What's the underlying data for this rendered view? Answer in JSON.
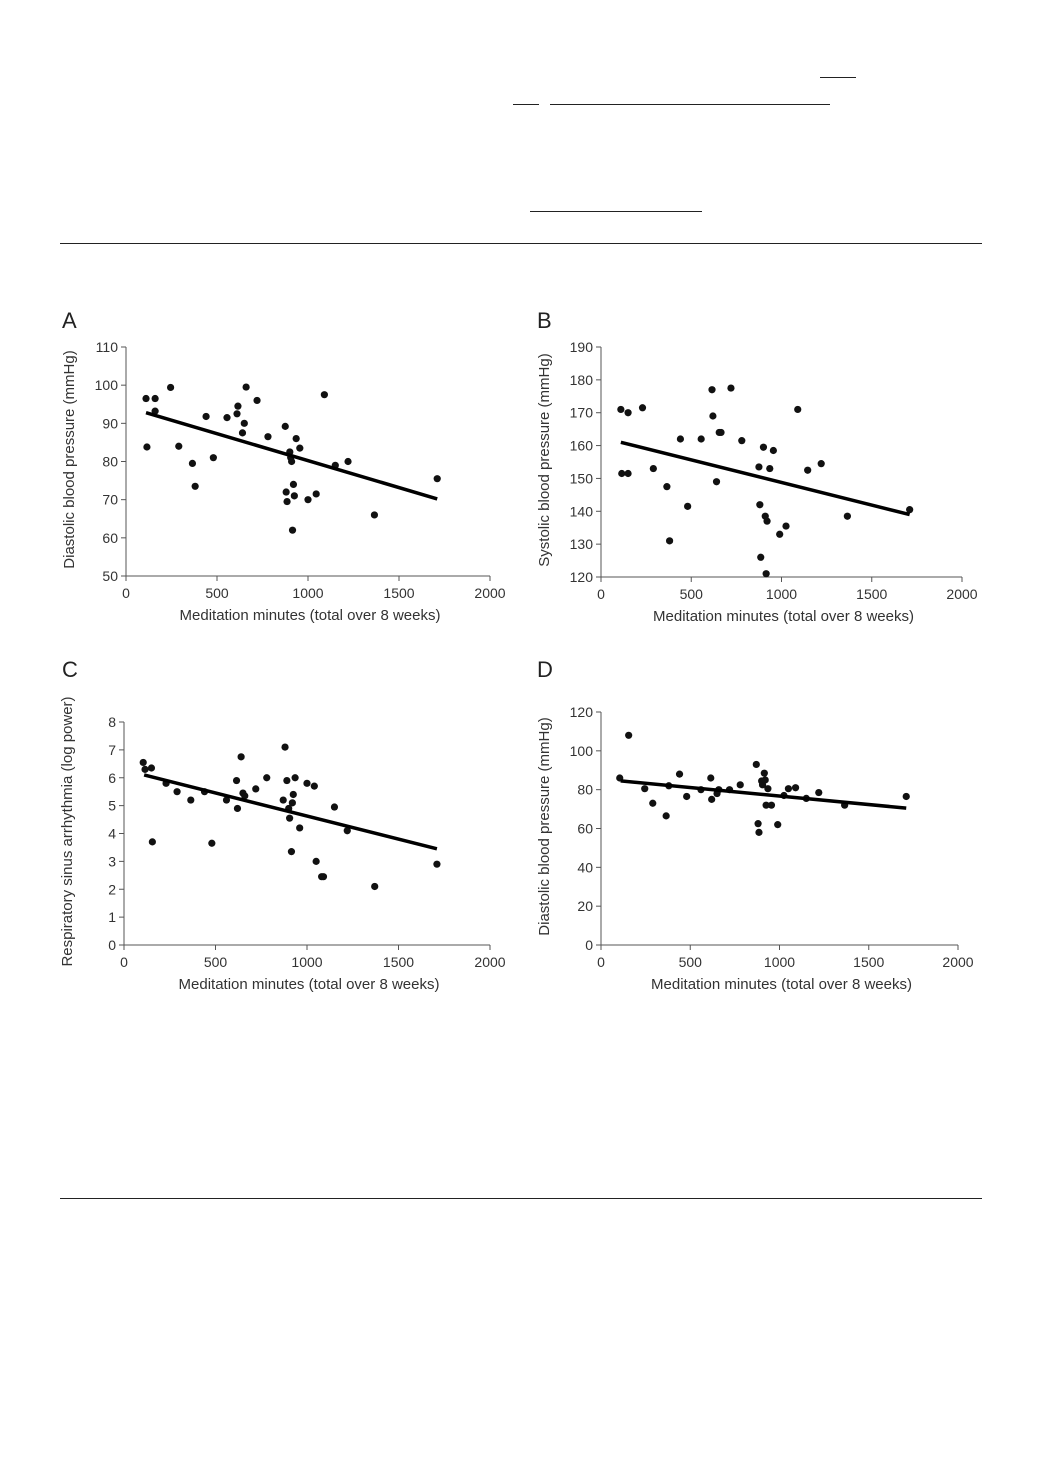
{
  "chart_data": [
    {
      "type": "scatter",
      "panel": "A",
      "xlabel": "Meditation minutes (total over 8 weeks)",
      "ylabel": "Diastolic blood pressure (mmHg)",
      "xlim": [
        0,
        2000
      ],
      "ylim": [
        50,
        110
      ],
      "xticks": [
        0,
        500,
        1000,
        1500,
        2000
      ],
      "yticks": [
        50,
        60,
        70,
        80,
        90,
        100,
        110
      ],
      "grid": false,
      "trendline": [
        [
          110,
          92.8
        ],
        [
          1710,
          70.2
        ]
      ],
      "points": [
        [
          110,
          96.5
        ],
        [
          160,
          96.5
        ],
        [
          115,
          83.8
        ],
        [
          160,
          93.2
        ],
        [
          245,
          99.4
        ],
        [
          290,
          84.0
        ],
        [
          365,
          79.5
        ],
        [
          380,
          73.5
        ],
        [
          440,
          91.8
        ],
        [
          480,
          81.0
        ],
        [
          555,
          91.5
        ],
        [
          610,
          92.5
        ],
        [
          615,
          94.5
        ],
        [
          640,
          87.5
        ],
        [
          650,
          90.0
        ],
        [
          660,
          99.5
        ],
        [
          720,
          96.0
        ],
        [
          780,
          86.5
        ],
        [
          875,
          89.2
        ],
        [
          880,
          72.0
        ],
        [
          885,
          69.5
        ],
        [
          900,
          82.5
        ],
        [
          905,
          81.0
        ],
        [
          910,
          80.0
        ],
        [
          915,
          62.0
        ],
        [
          920,
          74.0
        ],
        [
          925,
          71.0
        ],
        [
          935,
          86.0
        ],
        [
          955,
          83.5
        ],
        [
          1000,
          70.0
        ],
        [
          1045,
          71.5
        ],
        [
          1090,
          97.5
        ],
        [
          1150,
          79.0
        ],
        [
          1220,
          80.0
        ],
        [
          1365,
          66.0
        ],
        [
          1710,
          75.5
        ]
      ]
    },
    {
      "type": "scatter",
      "panel": "B",
      "xlabel": "Meditation minutes (total over 8 weeks)",
      "ylabel": "Systolic blood pressure (mmHg)",
      "xlim": [
        0,
        2000
      ],
      "ylim": [
        120,
        190
      ],
      "xticks": [
        0,
        500,
        1000,
        1500,
        2000
      ],
      "yticks": [
        120,
        130,
        140,
        150,
        160,
        170,
        180,
        190
      ],
      "grid": false,
      "trendline": [
        [
          110,
          161.0
        ],
        [
          1710,
          139.0
        ]
      ],
      "points": [
        [
          110,
          171.0
        ],
        [
          150,
          170.0
        ],
        [
          230,
          171.5
        ],
        [
          115,
          151.5
        ],
        [
          150,
          151.5
        ],
        [
          290,
          153.0
        ],
        [
          365,
          147.5
        ],
        [
          380,
          131.0
        ],
        [
          440,
          162.0
        ],
        [
          480,
          141.5
        ],
        [
          555,
          162.0
        ],
        [
          615,
          177.0
        ],
        [
          620,
          169.0
        ],
        [
          640,
          149.0
        ],
        [
          655,
          164.0
        ],
        [
          665,
          164.0
        ],
        [
          720,
          177.5
        ],
        [
          780,
          161.5
        ],
        [
          875,
          153.5
        ],
        [
          880,
          142.0
        ],
        [
          885,
          126.0
        ],
        [
          900,
          159.5
        ],
        [
          910,
          138.5
        ],
        [
          915,
          121.0
        ],
        [
          920,
          137.0
        ],
        [
          935,
          153.0
        ],
        [
          955,
          158.5
        ],
        [
          990,
          133.0
        ],
        [
          1025,
          135.5
        ],
        [
          1090,
          171.0
        ],
        [
          1145,
          152.5
        ],
        [
          1220,
          154.5
        ],
        [
          1365,
          138.5
        ],
        [
          1710,
          140.5
        ]
      ]
    },
    {
      "type": "scatter",
      "panel": "C",
      "xlabel": "Meditation minutes (total over 8 weeks)",
      "ylabel": "Respiratory sinus arrhythmia (log power)",
      "xlim": [
        0,
        2000
      ],
      "ylim": [
        0,
        8
      ],
      "xticks": [
        0,
        500,
        1000,
        1500,
        2000
      ],
      "yticks": [
        0,
        1,
        2,
        3,
        4,
        5,
        6,
        7,
        8
      ],
      "grid": false,
      "trendline": [
        [
          110,
          6.1
        ],
        [
          1710,
          3.45
        ]
      ],
      "points": [
        [
          105,
          6.55
        ],
        [
          115,
          6.3
        ],
        [
          150,
          6.35
        ],
        [
          155,
          3.7
        ],
        [
          230,
          5.8
        ],
        [
          290,
          5.5
        ],
        [
          365,
          5.2
        ],
        [
          440,
          5.5
        ],
        [
          480,
          3.65
        ],
        [
          560,
          5.2
        ],
        [
          615,
          5.9
        ],
        [
          620,
          4.9
        ],
        [
          640,
          6.75
        ],
        [
          650,
          5.45
        ],
        [
          660,
          5.35
        ],
        [
          720,
          5.6
        ],
        [
          780,
          6.0
        ],
        [
          870,
          5.2
        ],
        [
          880,
          7.1
        ],
        [
          890,
          5.9
        ],
        [
          900,
          4.9
        ],
        [
          905,
          4.55
        ],
        [
          915,
          3.35
        ],
        [
          920,
          5.1
        ],
        [
          925,
          5.4
        ],
        [
          935,
          6.0
        ],
        [
          960,
          4.2
        ],
        [
          1000,
          5.8
        ],
        [
          1040,
          5.7
        ],
        [
          1050,
          3.0
        ],
        [
          1080,
          2.45
        ],
        [
          1090,
          2.45
        ],
        [
          1150,
          4.95
        ],
        [
          1220,
          4.1
        ],
        [
          1370,
          2.1
        ],
        [
          1710,
          2.9
        ]
      ]
    },
    {
      "type": "scatter",
      "panel": "D",
      "xlabel": "Meditation minutes (total over 8 weeks)",
      "ylabel": "Diastolic blood pressure (mmHg)",
      "xlim": [
        0,
        2000
      ],
      "ylim": [
        0,
        120
      ],
      "xticks": [
        0,
        500,
        1000,
        1500,
        2000
      ],
      "yticks": [
        0,
        20,
        40,
        60,
        80,
        100,
        120
      ],
      "grid": false,
      "trendline": [
        [
          110,
          84.5
        ],
        [
          1710,
          70.5
        ]
      ],
      "points": [
        [
          105,
          86.0
        ],
        [
          155,
          108.0
        ],
        [
          245,
          80.5
        ],
        [
          290,
          73.0
        ],
        [
          365,
          66.5
        ],
        [
          380,
          82.0
        ],
        [
          440,
          88.0
        ],
        [
          480,
          76.5
        ],
        [
          560,
          80.0
        ],
        [
          615,
          86.0
        ],
        [
          620,
          75.0
        ],
        [
          650,
          78.0
        ],
        [
          660,
          80.0
        ],
        [
          720,
          80.0
        ],
        [
          780,
          82.5
        ],
        [
          870,
          93.0
        ],
        [
          880,
          62.5
        ],
        [
          885,
          58.0
        ],
        [
          900,
          84.5
        ],
        [
          905,
          82.5
        ],
        [
          915,
          88.5
        ],
        [
          920,
          85.0
        ],
        [
          925,
          72.0
        ],
        [
          935,
          80.5
        ],
        [
          955,
          72.0
        ],
        [
          990,
          62.0
        ],
        [
          1025,
          77.0
        ],
        [
          1050,
          80.5
        ],
        [
          1090,
          81.0
        ],
        [
          1150,
          75.5
        ],
        [
          1220,
          78.5
        ],
        [
          1365,
          72.0
        ],
        [
          1710,
          76.5
        ]
      ]
    }
  ]
}
